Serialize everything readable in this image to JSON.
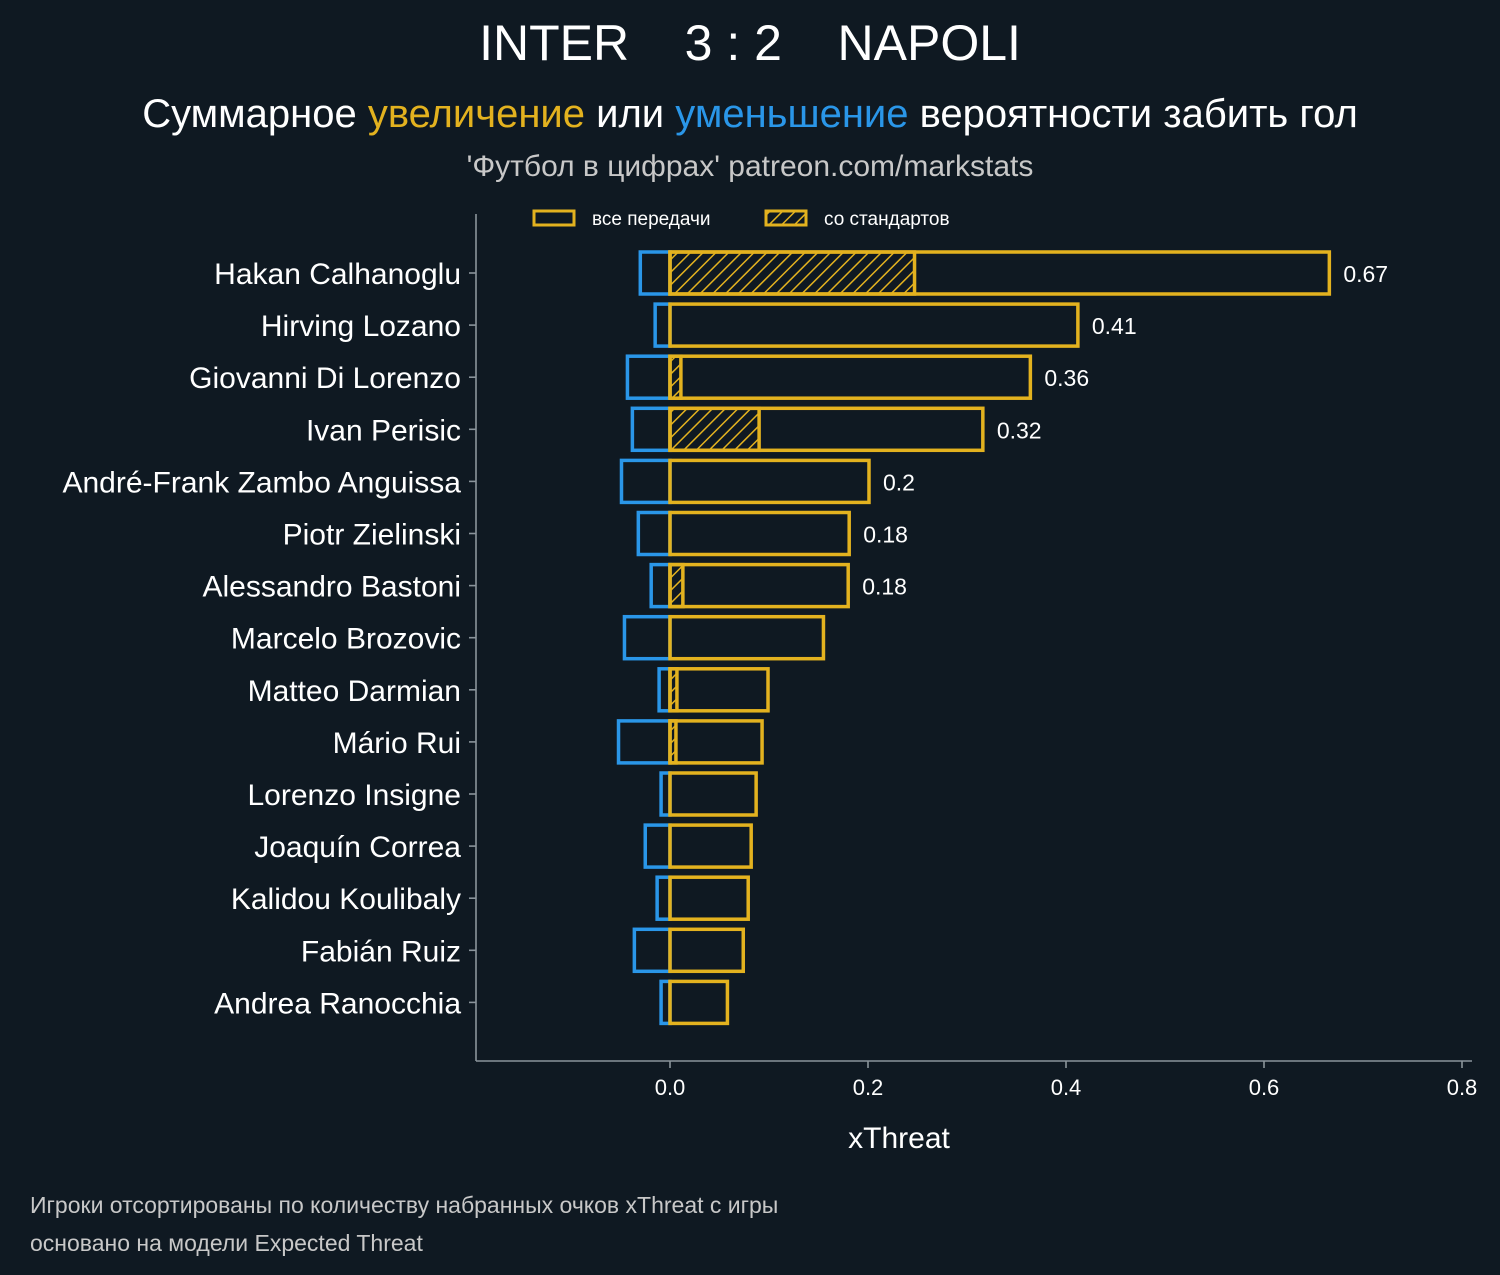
{
  "header": {
    "home_team": "INTER",
    "score": "3 : 2",
    "away_team": "NAPOLI",
    "subtitle_parts": [
      "Суммарное ",
      "увеличение",
      " или ",
      "уменьшение",
      " вероятности забить гол"
    ],
    "source": "'Футбол в цифрах' patreon.com/markstats"
  },
  "footnote": {
    "line1": "Игроки отсортированы по количеству набранных очков xThreat с игры",
    "line2": "основано на модели Expected Threat"
  },
  "colors": {
    "background": "#0f1922",
    "increase": "#e3b21f",
    "decrease": "#2a96e8",
    "axis": "#8a949b",
    "text": "#ffffff",
    "muted": "#c8c8c8"
  },
  "chart_data": {
    "type": "bar",
    "orientation": "horizontal",
    "xlabel": "xThreat",
    "xlim": [
      -0.196,
      0.81
    ],
    "xticks": [
      0.0,
      0.2,
      0.4,
      0.6,
      0.8
    ],
    "xtick_labels": [
      "0.0",
      "0.2",
      "0.4",
      "0.6",
      "0.8"
    ],
    "legend": {
      "placement": "top-left",
      "entries": [
        "все передачи",
        "со стандартов"
      ]
    },
    "categories": [
      "Hakan Calhanoglu",
      "Hirving Lozano",
      "Giovanni Di Lorenzo",
      "Ivan Perisic",
      "André-Frank Zambo Anguissa",
      "Piotr Zielinski",
      "Alessandro Bastoni",
      "Marcelo Brozovic",
      "Matteo Darmian",
      "Mário Rui",
      "Lorenzo Insigne",
      "Joaquín Correa",
      "Kalidou Koulibaly",
      "Fabián Ruiz",
      "Andrea Ranocchia"
    ],
    "series": [
      {
        "name": "все передачи",
        "values": [
          0.666,
          0.412,
          0.364,
          0.316,
          0.201,
          0.181,
          0.18,
          0.155,
          0.099,
          0.093,
          0.087,
          0.082,
          0.079,
          0.074,
          0.058
        ]
      },
      {
        "name": "со стандартов",
        "values": [
          0.247,
          0,
          0.011,
          0.09,
          0,
          0,
          0.013,
          0,
          0.007,
          0.006,
          0,
          0,
          0,
          0,
          0
        ]
      },
      {
        "values": [
          -0.03,
          -0.015,
          -0.043,
          -0.038,
          -0.049,
          -0.032,
          -0.019,
          -0.046,
          -0.011,
          -0.052,
          -0.009,
          -0.025,
          -0.013,
          -0.036,
          -0.009
        ]
      }
    ],
    "data_labels": [
      "0.67",
      "0.41",
      "0.36",
      "0.32",
      "0.2",
      "0.18",
      "0.18",
      "",
      "",
      "",
      "",
      "",
      "",
      "",
      ""
    ]
  }
}
